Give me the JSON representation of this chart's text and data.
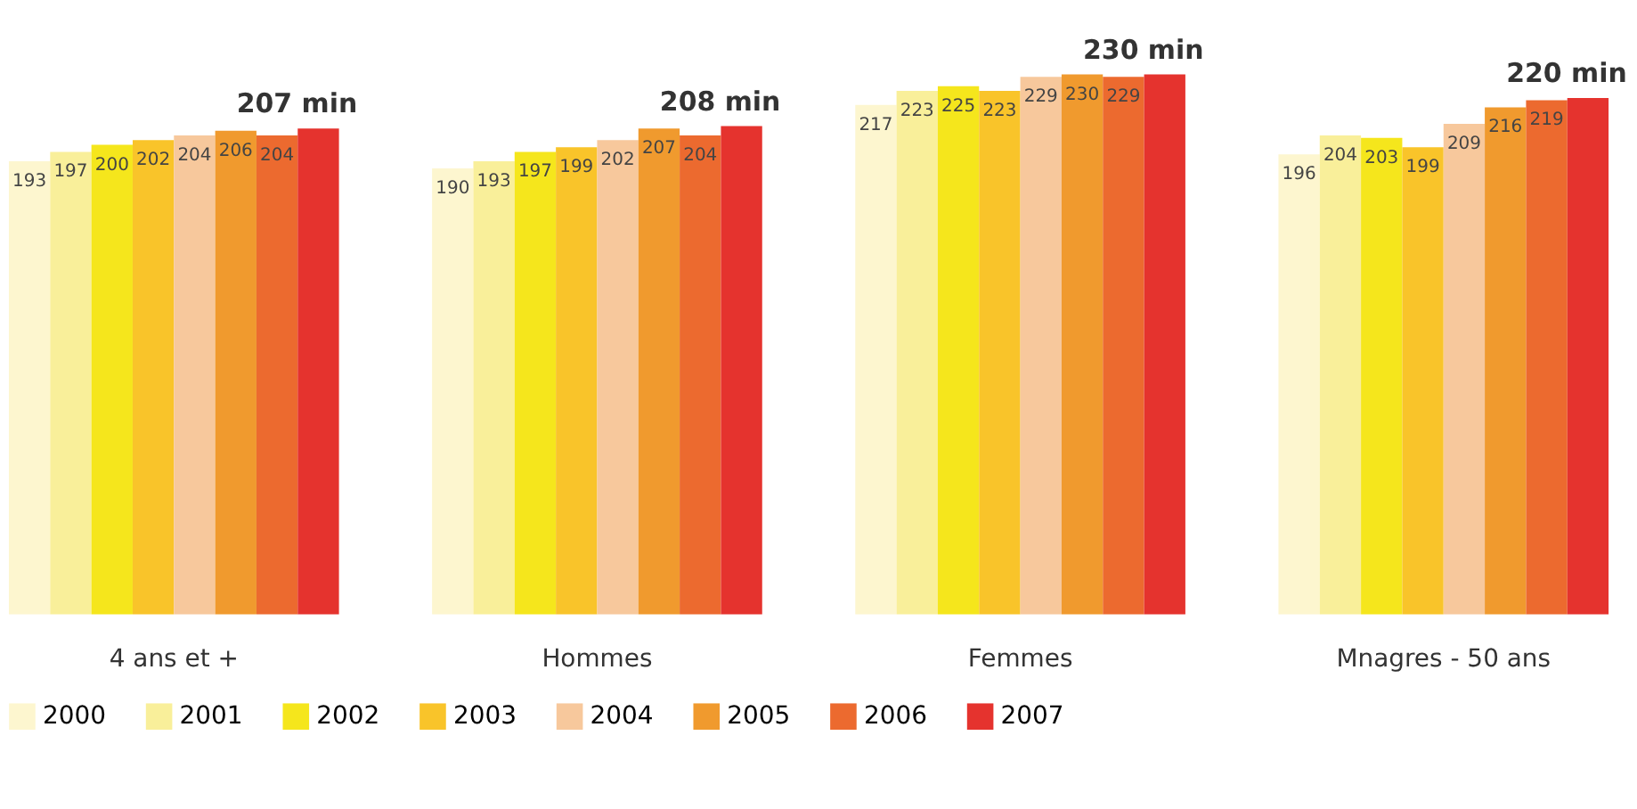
{
  "chart_data": {
    "type": "bar",
    "categories": [
      "4 ans et +",
      "Hommes",
      "Femmes",
      "Mnagres - 50 ans"
    ],
    "series": [
      {
        "name": "2000",
        "color": "#fdf6cf",
        "values": [
          193,
          190,
          217,
          196
        ],
        "value_labels": [
          "193",
          "190",
          "217",
          "196"
        ]
      },
      {
        "name": "2001",
        "color": "#f9ef9a",
        "values": [
          197,
          193,
          223,
          204
        ],
        "value_labels": [
          "197",
          "193",
          "223",
          "204"
        ]
      },
      {
        "name": "2002",
        "color": "#f5e61c",
        "values": [
          200,
          197,
          225,
          203
        ],
        "value_labels": [
          "200",
          "197",
          "225",
          "203"
        ]
      },
      {
        "name": "2003",
        "color": "#f9c42a",
        "values": [
          202,
          199,
          223,
          199
        ],
        "value_labels": [
          "202",
          "199",
          "223",
          "199"
        ]
      },
      {
        "name": "2004",
        "color": "#f7c89c",
        "values": [
          204,
          202,
          229,
          209
        ],
        "value_labels": [
          "204",
          "202",
          "229",
          "209"
        ]
      },
      {
        "name": "2005",
        "color": "#f09a2e",
        "values": [
          206,
          207,
          230,
          216
        ],
        "value_labels": [
          "206",
          "207",
          "230",
          "216"
        ]
      },
      {
        "name": "2006",
        "color": "#ec6a2f",
        "values": [
          204,
          204,
          229,
          219
        ],
        "value_labels": [
          "204",
          "204",
          "229",
          "219"
        ]
      },
      {
        "name": "2007",
        "color": "#e5332e",
        "values": [
          207,
          208,
          230,
          220
        ],
        "value_labels": [
          "207 min",
          "208 min",
          "230 min",
          "220 min"
        ]
      }
    ],
    "legend": "bottom",
    "grid": false
  }
}
